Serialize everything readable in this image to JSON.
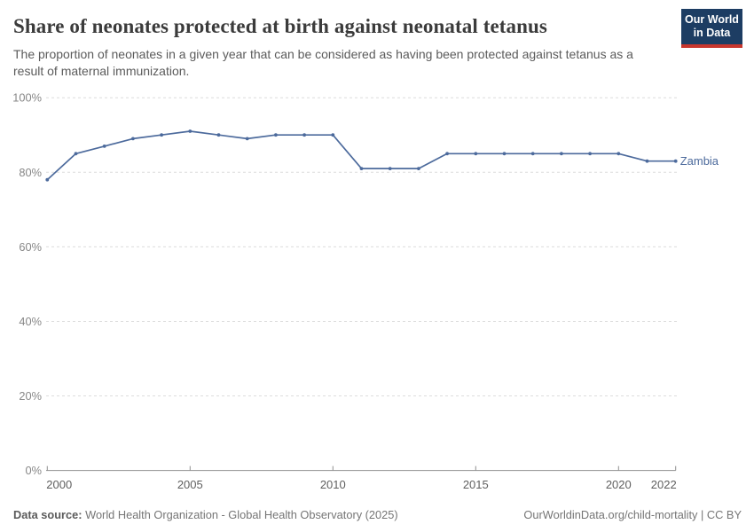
{
  "header": {
    "title": "Share of neonates protected at birth against neonatal tetanus",
    "subtitle": "The proportion of neonates in a given year that can be considered as having been protected against tetanus as a result of maternal immunization.",
    "logo": {
      "line1": "Our World",
      "line2": "in Data",
      "bg_color": "#1d3d63",
      "stripe_color": "#c8362d"
    }
  },
  "chart_data": {
    "type": "line",
    "title": "Share of neonates protected at birth against neonatal tetanus",
    "x": [
      2000,
      2001,
      2002,
      2003,
      2004,
      2005,
      2006,
      2007,
      2008,
      2009,
      2010,
      2011,
      2012,
      2013,
      2014,
      2015,
      2016,
      2017,
      2018,
      2019,
      2020,
      2021,
      2022
    ],
    "series": [
      {
        "name": "Zambia",
        "color": "#4c6a9c",
        "values": [
          78,
          85,
          87,
          89,
          90,
          91,
          90,
          89,
          90,
          90,
          90,
          81,
          81,
          81,
          85,
          85,
          85,
          85,
          85,
          85,
          85,
          83,
          83
        ]
      }
    ],
    "xlabel": "",
    "ylabel": "",
    "xlim": [
      2000,
      2022
    ],
    "ylim": [
      0,
      100
    ],
    "x_ticks": [
      2000,
      2005,
      2010,
      2015,
      2020,
      2022
    ],
    "y_ticks": [
      0,
      20,
      40,
      60,
      80,
      100
    ],
    "y_tick_suffix": "%",
    "grid": "horizontal-dashed",
    "legend_position": "end-of-line",
    "colors": {
      "gridline": "#dcdcdc",
      "axis_line": "#8f8f8f",
      "y_tick_label": "#878787",
      "x_tick_label": "#5f5f5f"
    }
  },
  "footer": {
    "datasource_label": "Data source:",
    "datasource_value": "World Health Organization - Global Health Observatory (2025)",
    "credit": "OurWorldinData.org/child-mortality | CC BY"
  }
}
